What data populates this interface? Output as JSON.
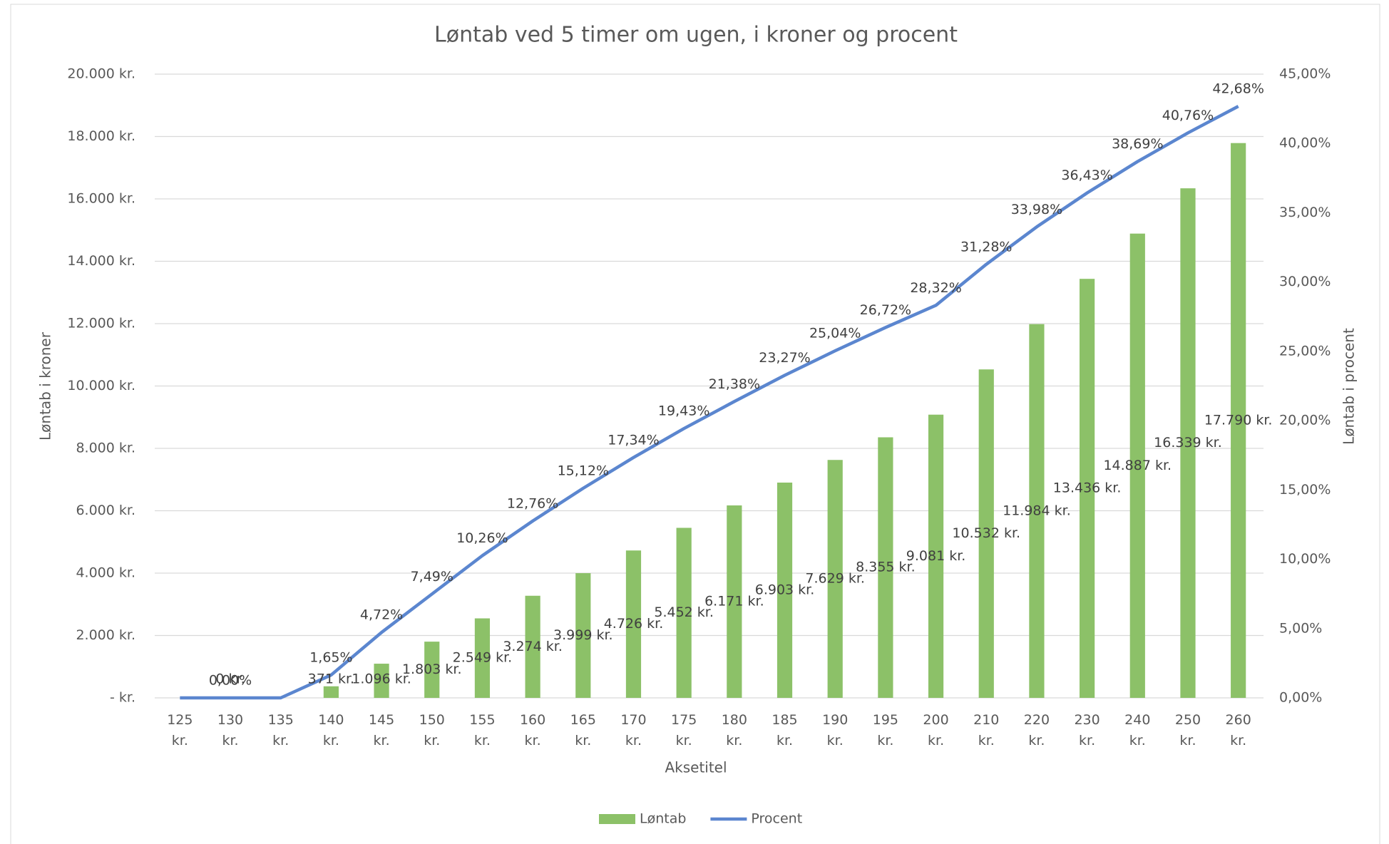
{
  "chart_data": {
    "type": "bar",
    "title": "Løntab ved 5 timer om ugen, i kroner og procent",
    "x_label": "Aksetitel",
    "y_label": "Løntab i kroner",
    "y2_label": "Løntab i procent",
    "categories": [
      "125 kr.",
      "130 kr.",
      "135 kr.",
      "140 kr.",
      "145 kr.",
      "150 kr.",
      "155 kr.",
      "160 kr.",
      "165 kr.",
      "170 kr.",
      "175 kr.",
      "180 kr.",
      "185 kr.",
      "190 kr.",
      "195 kr.",
      "200 kr.",
      "210 kr.",
      "220 kr.",
      "230 kr.",
      "240 kr.",
      "250 kr.",
      "260 kr."
    ],
    "series": [
      {
        "name": "Løntab",
        "type": "bar",
        "color": "#8cc168",
        "values": [
          0,
          0,
          0,
          371,
          1096,
          1803,
          2549,
          3274,
          3999,
          4726,
          5452,
          6171,
          6903,
          7629,
          8355,
          9081,
          10532,
          11984,
          13436,
          14887,
          16339,
          17790
        ],
        "value_labels": [
          null,
          "0 kr.",
          null,
          "371 kr.",
          "1.096 kr.",
          "1.803 kr.",
          "2.549 kr.",
          "3.274 kr.",
          "3.999 kr.",
          "4.726 kr.",
          "5.452 kr.",
          "6.171 kr.",
          "6.903 kr.",
          "7.629 kr.",
          "8.355 kr.",
          "9.081 kr.",
          "10.532 kr.",
          "11.984 kr.",
          "13.436 kr.",
          "14.887 kr.",
          "16.339 kr.",
          "17.790 kr."
        ]
      },
      {
        "name": "Procent",
        "type": "line",
        "axis": "y2",
        "color": "#5b86cf",
        "values": [
          0,
          0,
          0,
          1.65,
          4.72,
          7.49,
          10.26,
          12.76,
          15.12,
          17.34,
          19.43,
          21.38,
          23.27,
          25.04,
          26.72,
          28.32,
          31.28,
          33.98,
          36.43,
          38.69,
          40.76,
          42.68
        ],
        "value_labels": [
          null,
          "0,00%",
          null,
          "1,65%",
          "4,72%",
          "7,49%",
          "10,26%",
          "12,76%",
          "15,12%",
          "17,34%",
          "19,43%",
          "21,38%",
          "23,27%",
          "25,04%",
          "26,72%",
          "28,32%",
          "31,28%",
          "33,98%",
          "36,43%",
          "38,69%",
          "40,76%",
          "42,68%"
        ]
      }
    ],
    "ylim": [
      0,
      20000
    ],
    "yticks": [
      {
        "value": 0,
        "label": "-   kr."
      },
      {
        "value": 2000,
        "label": "2.000 kr."
      },
      {
        "value": 4000,
        "label": "4.000 kr."
      },
      {
        "value": 6000,
        "label": "6.000 kr."
      },
      {
        "value": 8000,
        "label": "8.000 kr."
      },
      {
        "value": 10000,
        "label": "10.000 kr."
      },
      {
        "value": 12000,
        "label": "12.000 kr."
      },
      {
        "value": 14000,
        "label": "14.000 kr."
      },
      {
        "value": 16000,
        "label": "16.000 kr."
      },
      {
        "value": 18000,
        "label": "18.000 kr."
      },
      {
        "value": 20000,
        "label": "20.000 kr."
      }
    ],
    "y2lim": [
      0,
      45
    ],
    "y2ticks": [
      {
        "value": 0,
        "label": "0,00%"
      },
      {
        "value": 5,
        "label": "5,00%"
      },
      {
        "value": 10,
        "label": "10,00%"
      },
      {
        "value": 15,
        "label": "15,00%"
      },
      {
        "value": 20,
        "label": "20,00%"
      },
      {
        "value": 25,
        "label": "25,00%"
      },
      {
        "value": 30,
        "label": "30,00%"
      },
      {
        "value": 35,
        "label": "35,00%"
      },
      {
        "value": 40,
        "label": "40,00%"
      },
      {
        "value": 45,
        "label": "45,00%"
      }
    ],
    "grid": true,
    "legend": "bottom"
  }
}
